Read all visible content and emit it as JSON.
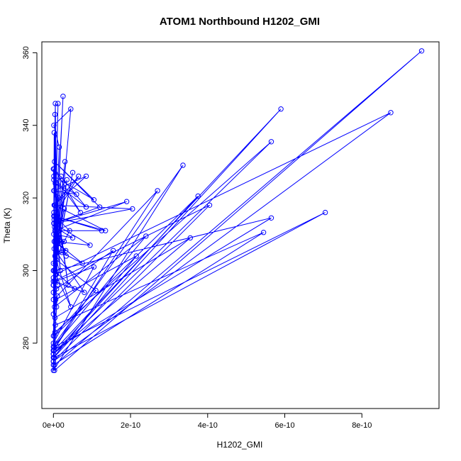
{
  "chart_data": {
    "type": "line",
    "title": "ATOM1 Northbound H1202_GMI",
    "xlabel": "H1202_GMI",
    "ylabel": "Theta (K)",
    "xlim": [
      -3e-11,
      1e-09
    ],
    "ylim": [
      262,
      363
    ],
    "xticks": [
      0,
      2e-10,
      4e-10,
      6e-10,
      8e-10
    ],
    "xtick_labels": [
      "0e+00",
      "2e-10",
      "4e-10",
      "6e-10",
      "8e-10"
    ],
    "yticks": [
      280,
      300,
      320,
      340,
      360
    ],
    "ytick_labels": [
      "280",
      "300",
      "320",
      "340",
      "360"
    ],
    "grid": false,
    "marker": "open-circle",
    "color": "#0000ff",
    "series": [
      {
        "x": [
          0,
          5e-12,
          1e-11,
          4e-12,
          8e-12,
          2e-12,
          0,
          3e-12,
          9.55e-10,
          3e-12,
          1e-12,
          5.9e-10,
          2e-12,
          0,
          3.36e-10,
          5e-12,
          0,
          3.75e-10,
          3e-12,
          0,
          2.7e-10,
          1e-11,
          0,
          4.05e-10,
          0,
          2e-12,
          7.05e-10,
          2e-12,
          0,
          5.65e-10,
          4e-12,
          0,
          5.45e-10,
          5e-12,
          0,
          3.55e-10,
          4e-12,
          0,
          2.4e-10,
          3e-12,
          0,
          2.15e-10,
          6e-12,
          0,
          1.55e-10,
          8e-12,
          0,
          1.05e-10,
          5e-12,
          0,
          8.75e-10,
          6e-12,
          0,
          5.65e-10,
          4e-12,
          0,
          1.1e-10,
          7e-12,
          0,
          1.2e-11,
          0,
          2.5e-11,
          0,
          4.5e-11,
          1e-12,
          1.5e-11,
          0,
          3e-11,
          0,
          5e-11,
          5e-12,
          2e-11,
          0,
          3.5e-11,
          6e-12,
          2.8e-11,
          0,
          4.2e-11,
          3e-12,
          6.5e-11,
          2e-12,
          8.5e-11,
          1e-12,
          6e-11,
          5e-12,
          8.5e-11,
          2e-12,
          7e-11,
          1e-12,
          1.05e-10,
          3e-12,
          1.2e-10,
          2e-12,
          1.9e-10,
          4e-12,
          1.25e-10,
          1e-12,
          1.35e-10,
          3e-12,
          2.05e-10,
          1e-12,
          9.5e-11,
          5e-12,
          7.5e-11,
          2e-12,
          8e-11,
          3e-12,
          5.5e-11,
          1e-12,
          4.5e-11,
          4e-12,
          3.2e-11,
          2e-12,
          2.8e-11,
          1e-12,
          5e-11,
          3e-12,
          3.3e-11,
          2e-12,
          2.2e-11,
          1e-12,
          1.8e-11,
          4e-12,
          1.4e-11,
          2e-12,
          3.8e-11,
          1e-12,
          1.2e-11,
          0,
          8e-12
        ],
        "y": [
          296,
          346,
          296,
          343,
          299,
          338,
          294,
          272.5,
          360.5,
          274,
          276,
          344.5,
          278,
          272.5,
          329,
          280,
          277,
          320.5,
          282,
          278,
          322,
          293,
          275,
          318,
          297,
          276,
          316,
          279,
          277,
          335.5,
          283,
          274,
          310.5,
          285,
          277,
          309,
          287,
          279,
          309.5,
          290,
          276,
          304,
          292,
          278,
          305.5,
          295,
          280,
          301,
          297,
          275,
          343.5,
          299,
          278,
          314.5,
          300,
          282,
          294.5,
          303,
          288,
          346,
          296,
          348,
          292,
          344.5,
          340,
          334,
          296,
          330,
          300,
          327,
          302,
          326,
          298,
          325,
          306,
          317,
          302,
          311,
          315,
          326,
          318,
          326,
          322,
          321,
          324,
          317.5,
          328,
          316,
          326,
          319.5,
          330,
          317.5,
          313,
          319,
          311,
          311,
          315,
          311,
          318,
          317,
          313,
          307,
          308,
          302,
          306,
          294,
          297,
          295,
          300,
          290,
          304,
          305.5,
          308,
          308,
          310,
          309,
          312,
          304,
          314,
          305,
          316,
          300,
          318,
          320,
          322,
          296,
          325,
          314,
          328,
          290
        ]
      }
    ]
  }
}
